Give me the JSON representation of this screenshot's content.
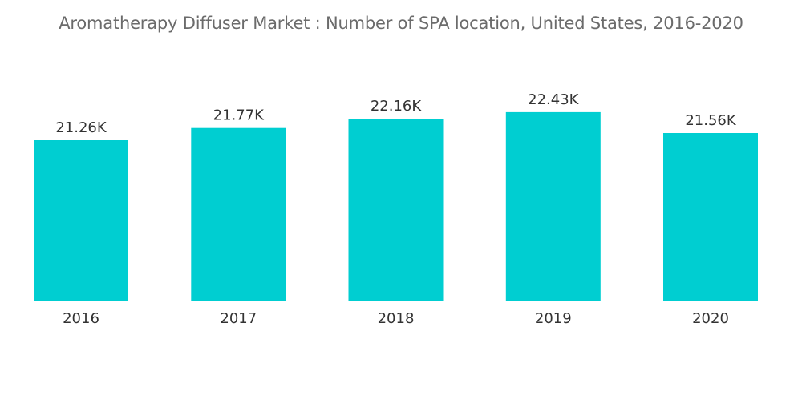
{
  "chart_data": {
    "type": "bar",
    "title": "Aromatherapy Diffuser Market : Number of SPA location, United States, 2016-2020",
    "categories": [
      "2016",
      "2017",
      "2018",
      "2019",
      "2020"
    ],
    "values": [
      21.26,
      21.77,
      22.16,
      22.43,
      21.56
    ],
    "value_labels": [
      "21.26K",
      "21.77K",
      "22.16K",
      "22.43K",
      "21.56K"
    ],
    "xlabel": "",
    "ylabel": "",
    "grid": false,
    "legend": "none",
    "bar_color": "#00CED1"
  }
}
